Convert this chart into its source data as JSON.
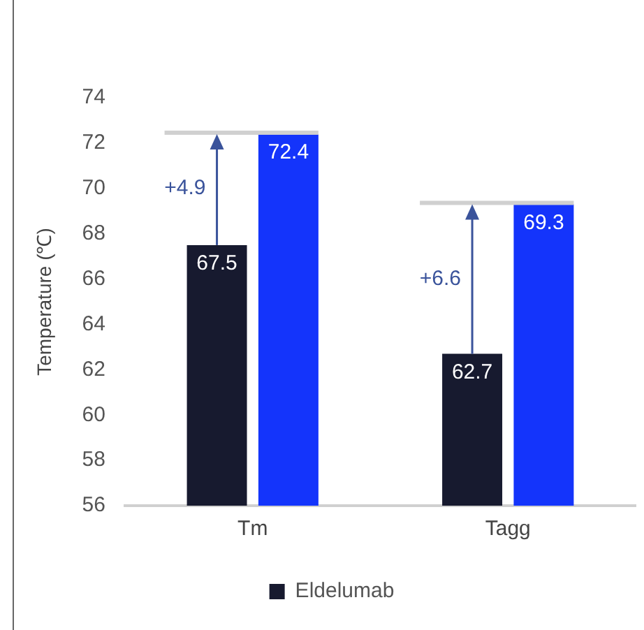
{
  "chart_data": {
    "type": "bar",
    "ylabel": "Temperature (℃)",
    "categories": [
      "Tm",
      "Tagg"
    ],
    "series": [
      {
        "name": "Eldelumab",
        "color": "#171a2f",
        "values": [
          67.5,
          62.7
        ]
      },
      {
        "color": "#1434fb",
        "values": [
          72.4,
          69.3
        ]
      }
    ],
    "ylim": [
      56,
      74
    ],
    "yticks": [
      56,
      58,
      60,
      62,
      64,
      66,
      68,
      70,
      72,
      74
    ],
    "data_labels": true,
    "grid": false,
    "legend": "bottom",
    "annotations": [
      {
        "text": "+4.9",
        "x": "Tm",
        "y": 70
      },
      {
        "text": "+6.6",
        "x": "Tagg",
        "y": 66
      }
    ]
  }
}
